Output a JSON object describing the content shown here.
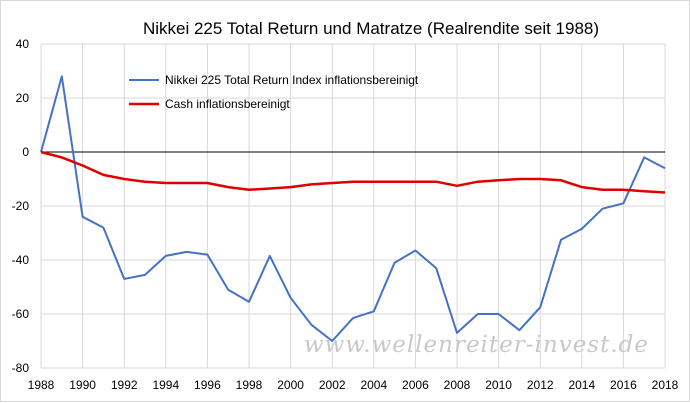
{
  "chart_data": {
    "type": "line",
    "title": "Nikkei 225 Total Return und Matratze  (Realrendite seit 1988)",
    "xlabel": "",
    "ylabel": "",
    "x": [
      1988,
      1989,
      1990,
      1991,
      1992,
      1993,
      1994,
      1995,
      1996,
      1997,
      1998,
      1999,
      2000,
      2001,
      2002,
      2003,
      2004,
      2005,
      2006,
      2007,
      2008,
      2009,
      2010,
      2011,
      2012,
      2013,
      2014,
      2015,
      2016,
      2017,
      2018
    ],
    "xticks": [
      "1988",
      "1990",
      "1992",
      "1994",
      "1996",
      "1998",
      "2000",
      "2002",
      "2004",
      "2006",
      "2008",
      "2010",
      "2012",
      "2014",
      "2016",
      "2018"
    ],
    "xlim": [
      1988,
      2018
    ],
    "ylim": [
      -80,
      40
    ],
    "yticks": [
      "-80",
      "-60",
      "-40",
      "-20",
      "0",
      "20",
      "40"
    ],
    "grid": true,
    "legend_position": "top-left",
    "series": [
      {
        "name": "Nikkei 225 Total Return Index inflationsbereinigt",
        "color": "#4472c4",
        "values": [
          0,
          28,
          -24,
          -28,
          -47,
          -45.5,
          -38.5,
          -37,
          -38,
          -51,
          -55.5,
          -38.5,
          -54,
          -64,
          -70,
          -61.5,
          -59,
          -41,
          -36.5,
          -43,
          -67,
          -60,
          -60,
          -66,
          -57.5,
          -32.5,
          -28.5,
          -21,
          -19,
          -2,
          -6
        ]
      },
      {
        "name": "Cash inflationsbereinigt",
        "color": "#e00000",
        "values": [
          0,
          -2,
          -5,
          -8.5,
          -10,
          -11,
          -11.5,
          -11.5,
          -11.5,
          -13,
          -14,
          -13.5,
          -13,
          -12,
          -11.5,
          -11,
          -11,
          -11,
          -11,
          -11,
          -12.5,
          -11,
          -10.5,
          -10,
          -10,
          -10.5,
          -13,
          -14,
          -14,
          -14.5,
          -15
        ]
      }
    ]
  },
  "watermark": "www.wellenreiter-invest.de"
}
